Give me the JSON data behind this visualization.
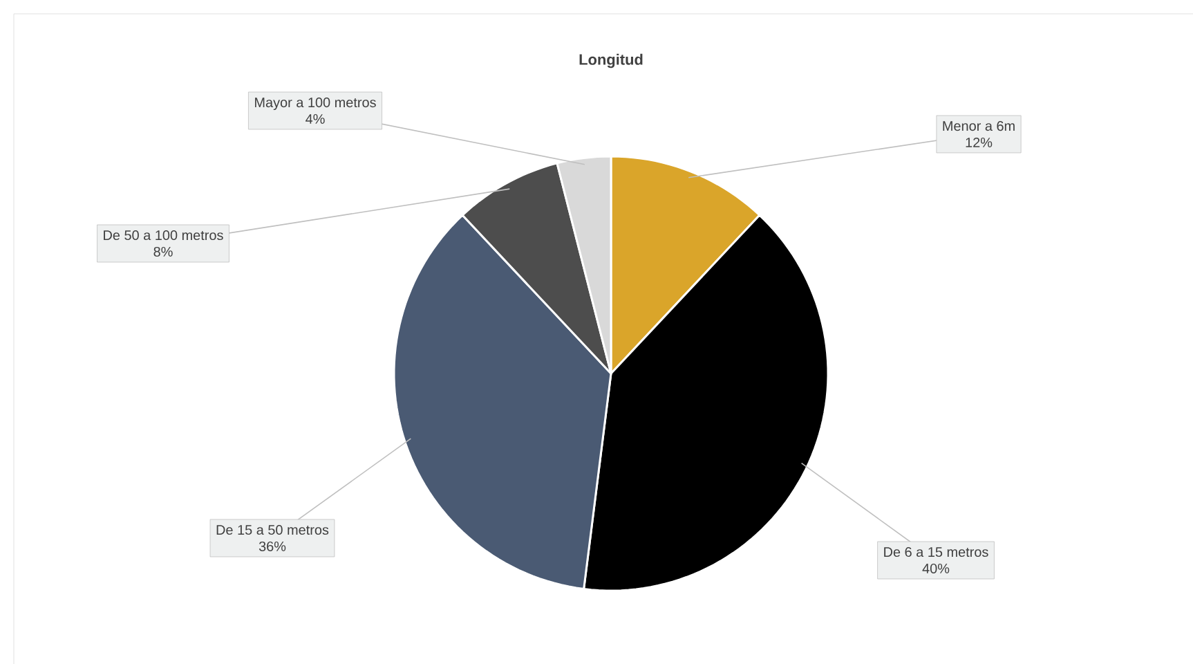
{
  "chart_data": {
    "type": "pie",
    "title": "Longitud",
    "categories": [
      "Menor a 6m",
      "De 6 a 15 metros",
      "De 15 a 50 metros",
      "De 50 a 100 metros",
      "Mayor a 100 metros"
    ],
    "values": [
      12,
      40,
      36,
      8,
      4
    ],
    "value_labels": [
      "12%",
      "40%",
      "36%",
      "8%",
      "4%"
    ],
    "colors": [
      "#daa52a",
      "#000000",
      "#4a5a73",
      "#4d4d4d",
      "#d9d9d9"
    ]
  }
}
